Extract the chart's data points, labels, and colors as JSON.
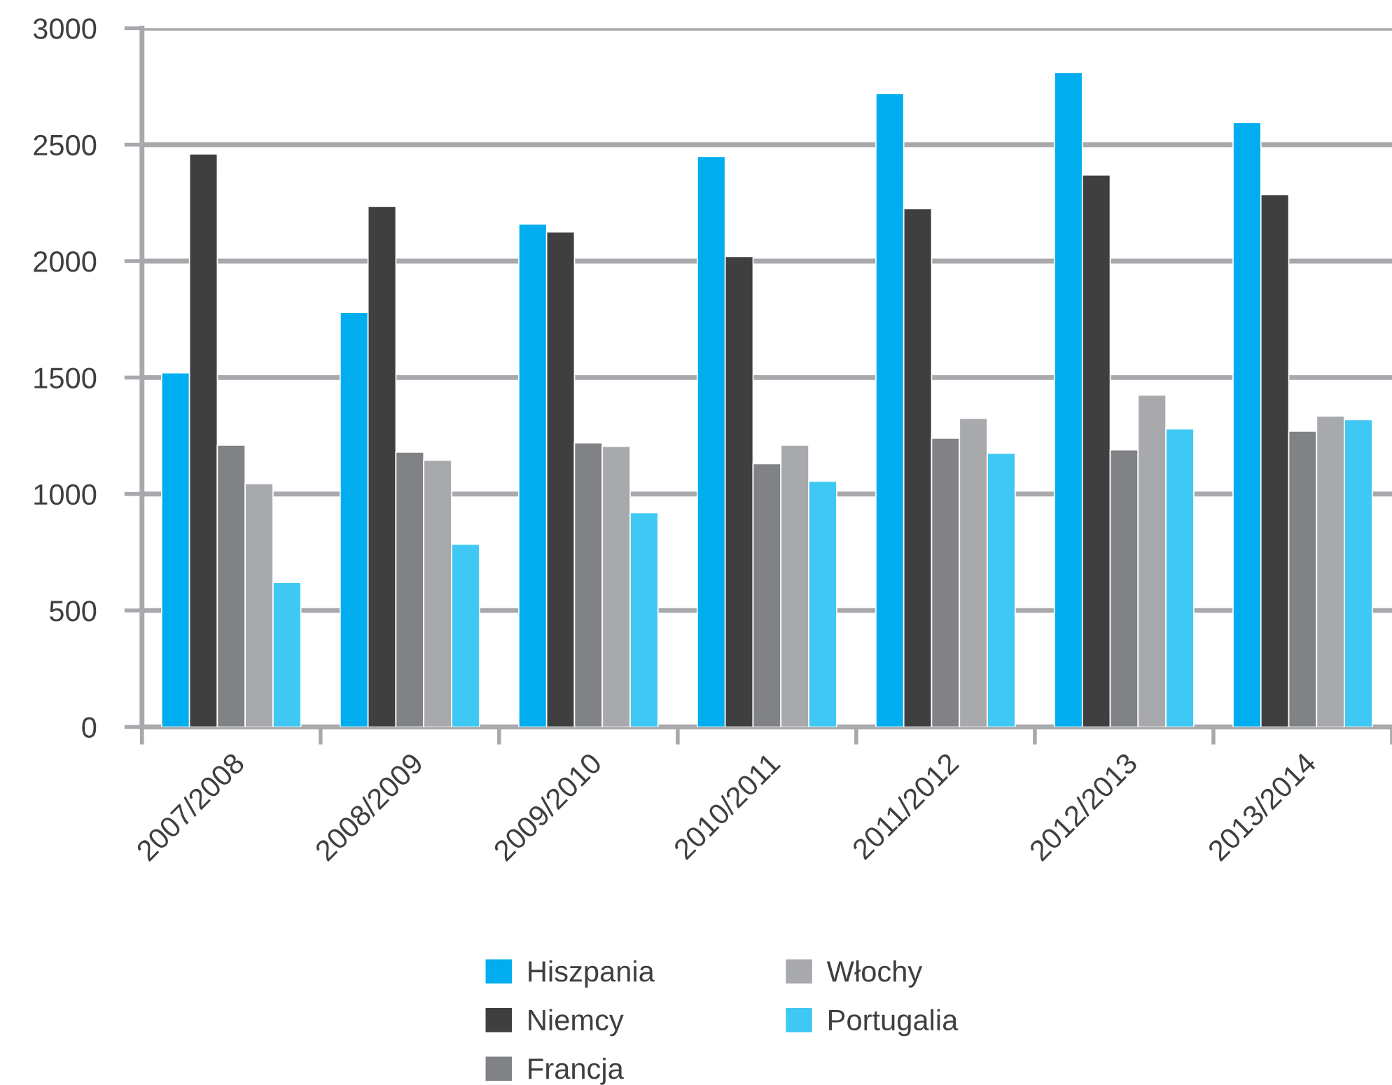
{
  "chart_data": {
    "type": "bar",
    "categories": [
      "2007/2008",
      "2008/2009",
      "2009/2010",
      "2010/2011",
      "2011/2012",
      "2012/2013",
      "2013/2014"
    ],
    "series": [
      {
        "name": "Hiszpania",
        "color": "#00aeef",
        "values": [
          1520,
          1780,
          2160,
          2450,
          2720,
          2810,
          2595
        ]
      },
      {
        "name": "Niemcy",
        "color": "#3f3f3f",
        "values": [
          2460,
          2235,
          2125,
          2020,
          2225,
          2370,
          2285
        ]
      },
      {
        "name": "Francja",
        "color": "#808285",
        "values": [
          1210,
          1180,
          1220,
          1130,
          1240,
          1190,
          1270
        ]
      },
      {
        "name": "Włochy",
        "color": "#a7a9ac",
        "values": [
          1045,
          1145,
          1205,
          1210,
          1325,
          1425,
          1335
        ]
      },
      {
        "name": "Portugalia",
        "color": "#40c8f4",
        "values": [
          620,
          785,
          920,
          1055,
          1175,
          1280,
          1320
        ]
      }
    ],
    "ylim": [
      0,
      3000
    ],
    "yticks": [
      0,
      500,
      1000,
      1500,
      2000,
      2500,
      3000
    ],
    "grid": "y",
    "legend": "bottom"
  }
}
